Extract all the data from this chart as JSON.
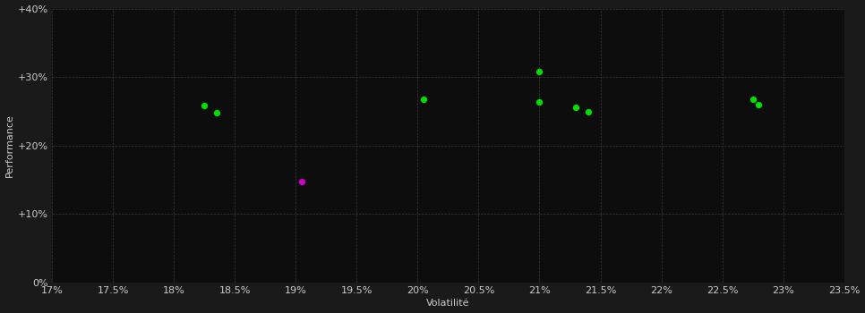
{
  "background_color": "#1a1a1a",
  "plot_bg_color": "#0d0d0d",
  "grid_color": "#3a3a3a",
  "text_color": "#cccccc",
  "xlabel": "Volatilité",
  "ylabel": "Performance",
  "xlim": [
    0.17,
    0.235
  ],
  "ylim": [
    0.0,
    0.4
  ],
  "xticks": [
    0.17,
    0.175,
    0.18,
    0.185,
    0.19,
    0.195,
    0.2,
    0.205,
    0.21,
    0.215,
    0.22,
    0.225,
    0.23,
    0.235
  ],
  "xtick_labels": [
    "17%",
    "17.5%",
    "18%",
    "18.5%",
    "19%",
    "19.5%",
    "20%",
    "20.5%",
    "21%",
    "21.5%",
    "22%",
    "22.5%",
    "23%",
    "23.5%"
  ],
  "yticks": [
    0.0,
    0.1,
    0.2,
    0.3,
    0.4
  ],
  "ytick_labels": [
    "0%",
    "+10%",
    "+20%",
    "+30%",
    "+40%"
  ],
  "green_points": [
    [
      0.1825,
      0.258
    ],
    [
      0.1835,
      0.248
    ],
    [
      0.2005,
      0.268
    ],
    [
      0.21,
      0.308
    ],
    [
      0.21,
      0.264
    ],
    [
      0.213,
      0.256
    ],
    [
      0.214,
      0.249
    ],
    [
      0.2275,
      0.268
    ],
    [
      0.228,
      0.26
    ]
  ],
  "magenta_points": [
    [
      0.1905,
      0.148
    ]
  ],
  "green_color": "#00dd00",
  "magenta_color": "#cc00cc",
  "marker_size": 28,
  "font_size": 8,
  "axis_label_fontsize": 8
}
